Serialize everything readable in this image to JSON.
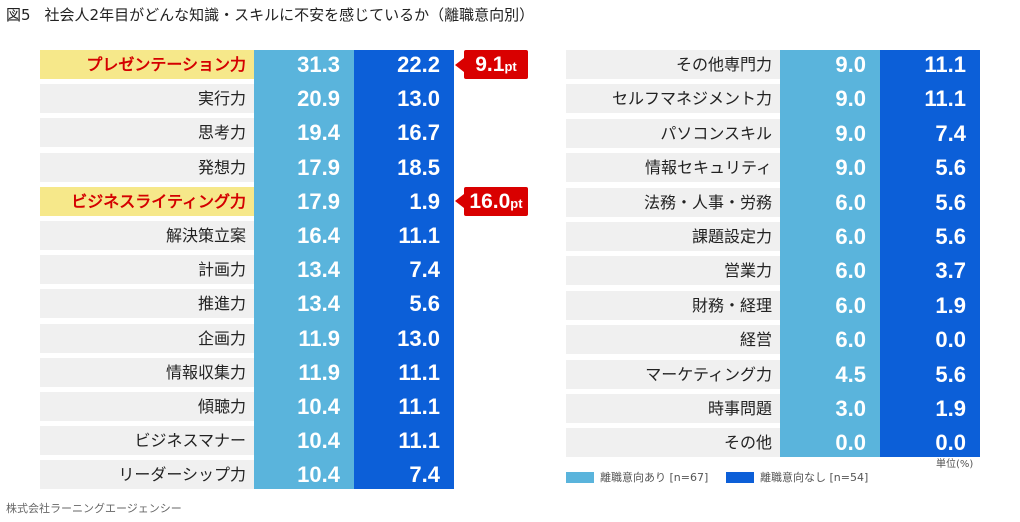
{
  "title": {
    "fig": "図5",
    "text": "社会人2年目がどんな知識・スキルに不安を感じているか（離職意向別）"
  },
  "source": "株式会社ラーニングエージェンシー",
  "unit": "単位(%)",
  "colors": {
    "series1": "#5ab4dc",
    "series2": "#0c5fd8",
    "highlight_bg": "#f6e88a",
    "highlight_text": "#d40000",
    "badge": "#d90000",
    "row_bg": "#f0f0f0"
  },
  "legend": [
    {
      "label": "離職意向あり [n=67]",
      "color": "#5ab4dc"
    },
    {
      "label": "離職意向なし [n=54]",
      "color": "#0c5fd8"
    }
  ],
  "chart_data": [
    {
      "type": "table",
      "series": [
        {
          "name": "離職意向あり [n=67]",
          "values": [
            31.3,
            20.9,
            19.4,
            17.9,
            17.9,
            16.4,
            13.4,
            13.4,
            11.9,
            11.9,
            10.4,
            10.4,
            10.4
          ]
        },
        {
          "name": "離職意向なし [n=54]",
          "values": [
            22.2,
            13.0,
            16.7,
            18.5,
            1.9,
            11.1,
            7.4,
            5.6,
            13.0,
            11.1,
            11.1,
            11.1,
            7.4
          ]
        }
      ],
      "categories": [
        "プレゼンテーション力",
        "実行力",
        "思考力",
        "発想力",
        "ビジネスライティング力",
        "解決策立案",
        "計画力",
        "推進力",
        "企画力",
        "情報収集力",
        "傾聴力",
        "ビジネスマナー",
        "リーダーシップ力"
      ],
      "display": [
        "31.3",
        "20.9",
        "19.4",
        "17.9",
        "17.9",
        "16.4",
        "13.4",
        "13.4",
        "11.9",
        "11.9",
        "10.4",
        "10.4",
        "10.4"
      ],
      "display2": [
        "22.2",
        "13.0",
        "16.7",
        "18.5",
        "1.9",
        "11.1",
        "7.4",
        "5.6",
        "13.0",
        "11.1",
        "11.1",
        "11.1",
        "7.4"
      ],
      "highlighted": [
        0,
        4
      ],
      "annotations": [
        {
          "row": 0,
          "value": "9.1",
          "unit": "pt"
        },
        {
          "row": 4,
          "value": "16.0",
          "unit": "pt"
        }
      ]
    },
    {
      "type": "table",
      "series": [
        {
          "name": "離職意向あり [n=67]",
          "values": [
            9.0,
            9.0,
            9.0,
            9.0,
            6.0,
            6.0,
            6.0,
            6.0,
            6.0,
            4.5,
            3.0,
            0.0
          ]
        },
        {
          "name": "離職意向なし [n=54]",
          "values": [
            11.1,
            11.1,
            7.4,
            5.6,
            5.6,
            5.6,
            3.7,
            1.9,
            0.0,
            5.6,
            1.9,
            0.0
          ]
        }
      ],
      "categories": [
        "その他専門力",
        "セルフマネジメント力",
        "パソコンスキル",
        "情報セキュリティ",
        "法務・人事・労務",
        "課題設定力",
        "営業力",
        "財務・経理",
        "経営",
        "マーケティング力",
        "時事問題",
        "その他"
      ],
      "display": [
        "9.0",
        "9.0",
        "9.0",
        "9.0",
        "6.0",
        "6.0",
        "6.0",
        "6.0",
        "6.0",
        "4.5",
        "3.0",
        "0.0"
      ],
      "display2": [
        "11.1",
        "11.1",
        "7.4",
        "5.6",
        "5.6",
        "5.6",
        "3.7",
        "1.9",
        "0.0",
        "5.6",
        "1.9",
        "0.0"
      ],
      "highlighted": [],
      "annotations": []
    }
  ]
}
